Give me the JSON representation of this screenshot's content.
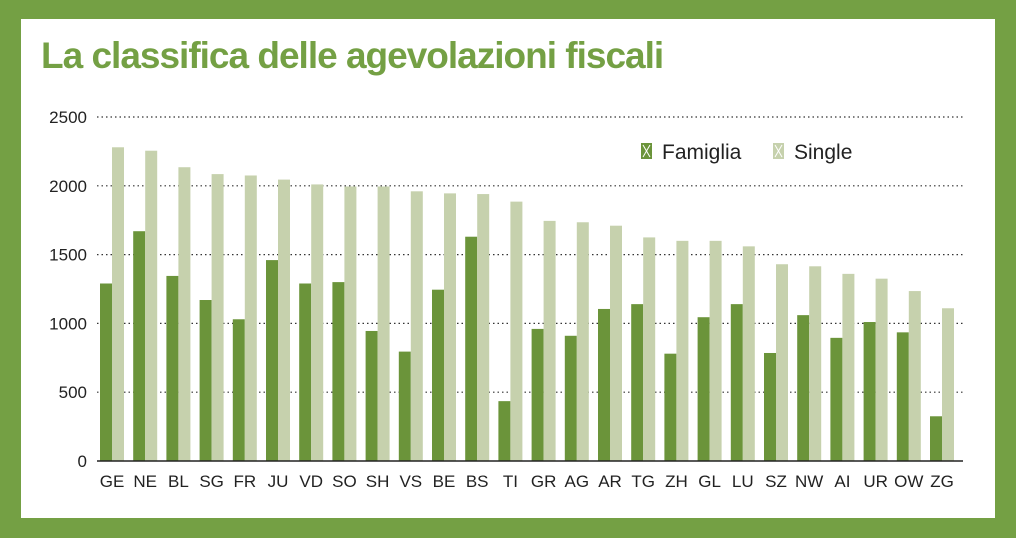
{
  "chart_data": {
    "type": "bar",
    "title": "La classifica delle agevolazioni fiscali",
    "xlabel": "",
    "ylabel": "",
    "ylim": [
      0,
      2500
    ],
    "yticks": [
      0,
      500,
      1000,
      1500,
      2000,
      2500
    ],
    "grid": true,
    "legend_position": "top-right",
    "categories": [
      "GE",
      "NE",
      "BL",
      "SG",
      "FR",
      "JU",
      "VD",
      "SO",
      "SH",
      "VS",
      "BE",
      "BS",
      "TI",
      "GR",
      "AG",
      "AR",
      "TG",
      "ZH",
      "GL",
      "LU",
      "SZ",
      "NW",
      "AI",
      "UR",
      "OW",
      "ZG"
    ],
    "series": [
      {
        "name": "Famiglia",
        "color": "#6b943a",
        "values": [
          1290,
          1670,
          1345,
          1170,
          1030,
          1460,
          1290,
          1300,
          945,
          795,
          1245,
          1630,
          435,
          960,
          910,
          1105,
          1140,
          780,
          1045,
          1140,
          785,
          1060,
          895,
          1010,
          935,
          325
        ]
      },
      {
        "name": "Single",
        "color": "#c6d1ad",
        "values": [
          2280,
          2255,
          2135,
          2085,
          2075,
          2045,
          2010,
          1995,
          1995,
          1960,
          1945,
          1940,
          1885,
          1745,
          1735,
          1710,
          1625,
          1600,
          1600,
          1560,
          1430,
          1415,
          1360,
          1325,
          1235,
          1110
        ]
      }
    ]
  }
}
